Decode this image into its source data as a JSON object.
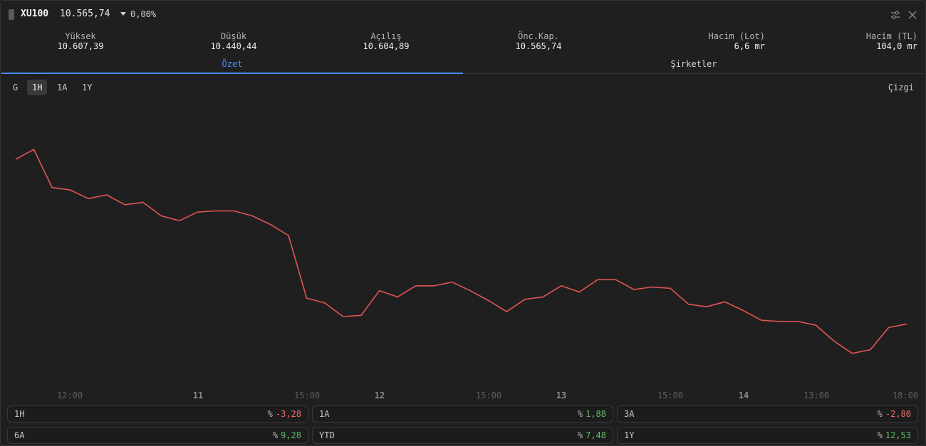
{
  "header": {
    "symbol": "XU100",
    "last_price": "10.565,74",
    "change_pct": "0,00%"
  },
  "stats": [
    {
      "label": "Yüksek",
      "value": "10.607,39"
    },
    {
      "label": "Düşük",
      "value": "10.440,44"
    },
    {
      "label": "Açılış",
      "value": "10.604,89"
    },
    {
      "label": "Önc.Kap.",
      "value": "10.565,74"
    },
    {
      "label": "Hacim (Lot)",
      "value": "6,6 mr"
    },
    {
      "label": "Hacim (TL)",
      "value": "104,0 mr"
    }
  ],
  "tabs": [
    {
      "label": "Özet",
      "active": true
    },
    {
      "label": "Şirketler",
      "active": false
    }
  ],
  "ranges": [
    {
      "label": "G",
      "active": false
    },
    {
      "label": "1H",
      "active": true
    },
    {
      "label": "1A",
      "active": false
    },
    {
      "label": "1Y",
      "active": false
    }
  ],
  "chart_type_label": "Çizgi",
  "chart_data": {
    "type": "line",
    "line_color": "#e05555",
    "x_labels": [
      {
        "label": "12:00",
        "bold": false
      },
      {
        "label": "11",
        "bold": true
      },
      {
        "label": "15:00",
        "bold": false
      },
      {
        "label": "12",
        "bold": true
      },
      {
        "label": "15:00",
        "bold": false
      },
      {
        "label": "13",
        "bold": true
      },
      {
        "label": "15:00",
        "bold": false
      },
      {
        "label": "14",
        "bold": true
      },
      {
        "label": "13:00",
        "bold": false
      },
      {
        "label": "18:00",
        "bold": false
      }
    ],
    "y_range": [
      10420,
      10640
    ],
    "values": [
      10603,
      10611,
      10580,
      10578,
      10571,
      10574,
      10566,
      10568,
      10557,
      10553,
      10560,
      10561,
      10561,
      10557,
      10550,
      10541,
      10490,
      10486,
      10475,
      10476,
      10496,
      10491,
      10500,
      10500,
      10503,
      10496,
      10488,
      10479,
      10489,
      10491,
      10500,
      10495,
      10505,
      10505,
      10497,
      10499,
      10498,
      10485,
      10483,
      10487,
      10480,
      10472,
      10471,
      10471,
      10468,
      10455,
      10445,
      10448,
      10466,
      10469
    ]
  },
  "returns": [
    {
      "period": "1H",
      "value": "-3,28",
      "sign": "neg"
    },
    {
      "period": "1A",
      "value": "1,88",
      "sign": "pos"
    },
    {
      "period": "3A",
      "value": "-2,80",
      "sign": "neg"
    },
    {
      "period": "6A",
      "value": "9,28",
      "sign": "pos"
    },
    {
      "period": "YTD",
      "value": "7,48",
      "sign": "pos"
    },
    {
      "period": "1Y",
      "value": "12,53",
      "sign": "pos"
    }
  ],
  "percent_symbol": "%",
  "colors": {
    "accent": "#4c8df6",
    "negative": "#f26b6b",
    "positive": "#5dbb63"
  }
}
